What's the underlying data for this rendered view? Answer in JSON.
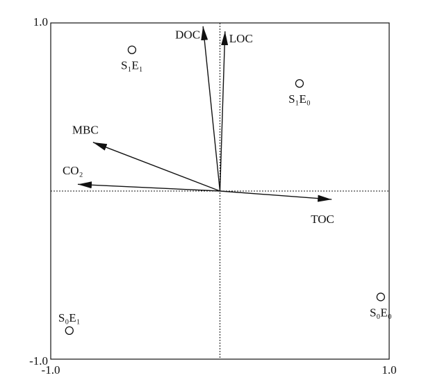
{
  "chart_data": {
    "type": "biplot",
    "xlim": [
      -1,
      1
    ],
    "ylim": [
      -1,
      1
    ],
    "xticks": [
      {
        "value": -1,
        "label": "-1.0"
      },
      {
        "value": 1,
        "label": "1.0"
      }
    ],
    "yticks": [
      {
        "value": -1,
        "label": "-1.0"
      },
      {
        "value": 1,
        "label": "1.0"
      }
    ],
    "vectors": [
      {
        "name": "DOC",
        "x": -0.1,
        "y": 0.98
      },
      {
        "name": "LOC",
        "x": 0.03,
        "y": 0.95
      },
      {
        "name": "MBC",
        "x": -0.75,
        "y": 0.29
      },
      {
        "name": "CO₂",
        "x": -0.84,
        "y": 0.04
      },
      {
        "name": "TOC",
        "x": 0.66,
        "y": -0.05
      }
    ],
    "points": [
      {
        "name": "S₁E₁",
        "x": -0.52,
        "y": 0.84
      },
      {
        "name": "S₁E₀",
        "x": 0.47,
        "y": 0.64
      },
      {
        "name": "S₀E₁",
        "x": -0.89,
        "y": -0.83
      },
      {
        "name": "S₀E₀",
        "x": 0.95,
        "y": -0.63
      }
    ],
    "color": "#111111"
  }
}
